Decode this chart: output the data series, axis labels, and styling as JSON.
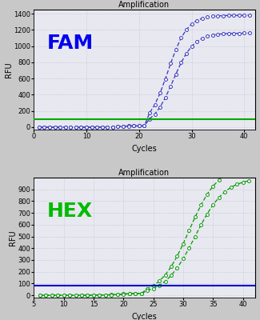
{
  "fam": {
    "title": "Amplification",
    "label": "FAM",
    "label_color": "#0000EE",
    "curve_color": "#3333BB",
    "threshold_color": "#00AA00",
    "threshold_y": 100,
    "xlim": [
      0,
      42
    ],
    "ylim": [
      -30,
      1450
    ],
    "yticks": [
      0,
      200,
      400,
      600,
      800,
      1000,
      1200,
      1400
    ],
    "xticks": [
      0,
      10,
      20,
      30,
      40
    ],
    "xlabel": "Cycles",
    "ylabel": "RFU",
    "curve1_L": 1380,
    "curve1_k": 0.55,
    "curve1_x0": 25.5,
    "curve2_L": 1160,
    "curve2_k": 0.52,
    "curve2_x0": 26.5,
    "start_cycle": 1
  },
  "hex": {
    "title": "Amplification",
    "label": "HEX",
    "label_color": "#00BB00",
    "curve_color": "#009900",
    "threshold_color": "#0000CC",
    "threshold_y": 80,
    "xlim": [
      5,
      42
    ],
    "ylim": [
      -20,
      1000
    ],
    "yticks": [
      0,
      100,
      200,
      300,
      400,
      500,
      600,
      700,
      800,
      900
    ],
    "xticks": [
      5,
      10,
      15,
      20,
      25,
      30,
      35,
      40
    ],
    "xlabel": "Cycles",
    "ylabel": "RFU",
    "curve1_L": 1100,
    "curve1_k": 0.42,
    "curve1_x0": 31.0,
    "curve2_L": 1000,
    "curve2_k": 0.4,
    "curve2_x0": 32.0,
    "start_cycle": 6
  },
  "bg_color": "#E8E8F0",
  "grid_color": "#BBBBCC",
  "title_fontsize": 7,
  "label_fontsize": 18,
  "axis_fontsize": 7,
  "tick_fontsize": 6
}
